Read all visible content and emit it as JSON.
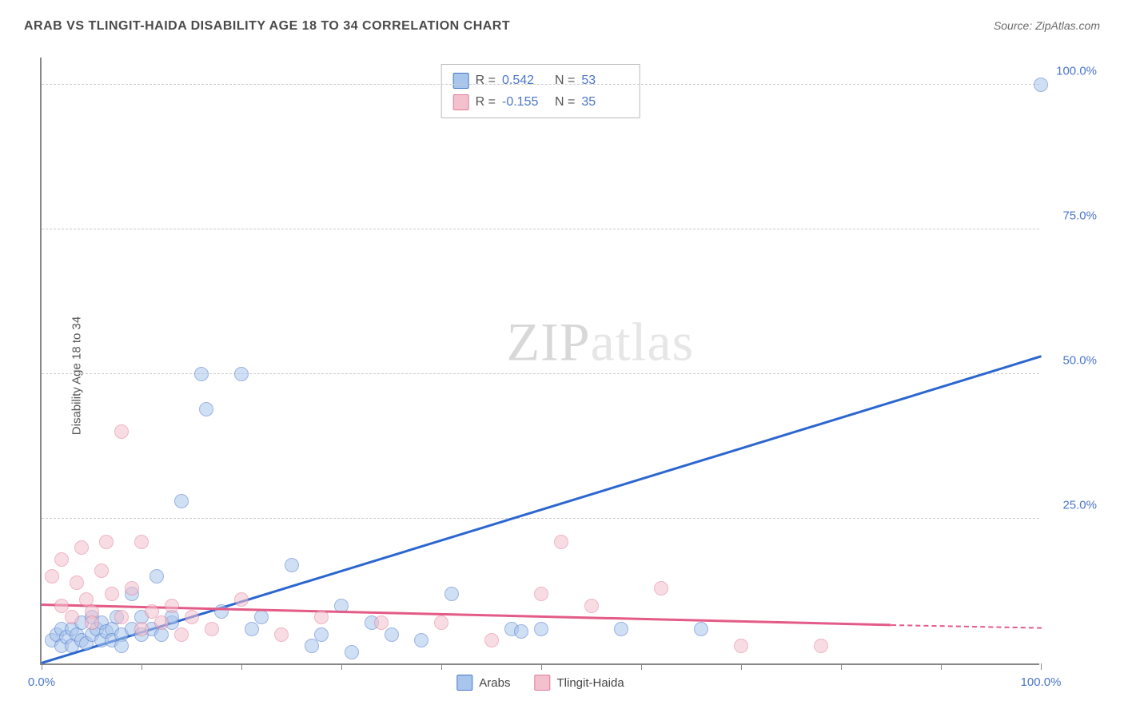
{
  "title": "ARAB VS TLINGIT-HAIDA DISABILITY AGE 18 TO 34 CORRELATION CHART",
  "source_label": "Source: ZipAtlas.com",
  "ylabel": "Disability Age 18 to 34",
  "watermark_a": "ZIP",
  "watermark_b": "atlas",
  "chart": {
    "type": "scatter",
    "xlim": [
      0,
      100
    ],
    "ylim": [
      0,
      105
    ],
    "ytick_values": [
      25,
      50,
      75,
      100
    ],
    "ytick_labels": [
      "25.0%",
      "50.0%",
      "75.0%",
      "100.0%"
    ],
    "xtick_values": [
      0,
      10,
      20,
      30,
      40,
      50,
      60,
      70,
      80,
      90,
      100
    ],
    "xtick_major_labels": {
      "0": "0.0%",
      "100": "100.0%"
    },
    "background_color": "#ffffff",
    "grid_color": "#cccccc",
    "axis_color": "#888888",
    "tick_label_color": "#4a76c9",
    "marker_radius": 9,
    "marker_opacity": 0.55,
    "series": [
      {
        "name": "Arabs",
        "fill": "#a8c5ec",
        "stroke": "#4a76c9",
        "trend": {
          "x1": 0,
          "y1": 0,
          "x2": 100,
          "y2": 53,
          "color": "#2b66d0"
        },
        "R_label": "R =",
        "R_value": "0.542",
        "N_label": "N =",
        "N_value": "53",
        "points": [
          [
            1,
            4
          ],
          [
            1.5,
            5
          ],
          [
            2,
            3
          ],
          [
            2,
            6
          ],
          [
            2.5,
            4.5
          ],
          [
            3,
            3
          ],
          [
            3,
            6
          ],
          [
            3.5,
            5
          ],
          [
            4,
            4
          ],
          [
            4,
            7
          ],
          [
            4.5,
            3.5
          ],
          [
            5,
            5
          ],
          [
            5,
            8
          ],
          [
            5.5,
            6
          ],
          [
            6,
            4
          ],
          [
            6,
            7
          ],
          [
            6.5,
            5.5
          ],
          [
            7,
            6
          ],
          [
            7,
            4
          ],
          [
            7.5,
            8
          ],
          [
            8,
            5
          ],
          [
            8,
            3
          ],
          [
            9,
            6
          ],
          [
            9,
            12
          ],
          [
            10,
            5
          ],
          [
            10,
            8
          ],
          [
            11,
            6
          ],
          [
            11.5,
            15
          ],
          [
            12,
            5
          ],
          [
            13,
            7
          ],
          [
            13,
            8
          ],
          [
            14,
            28
          ],
          [
            16.5,
            44
          ],
          [
            16,
            50
          ],
          [
            18,
            9
          ],
          [
            20,
            50
          ],
          [
            21,
            6
          ],
          [
            22,
            8
          ],
          [
            25,
            17
          ],
          [
            27,
            3
          ],
          [
            28,
            5
          ],
          [
            30,
            10
          ],
          [
            31,
            2
          ],
          [
            33,
            7
          ],
          [
            35,
            5
          ],
          [
            38,
            4
          ],
          [
            41,
            12
          ],
          [
            47,
            6
          ],
          [
            48,
            5.5
          ],
          [
            50,
            6
          ],
          [
            58,
            6
          ],
          [
            66,
            6
          ],
          [
            100,
            100
          ]
        ]
      },
      {
        "name": "Tlingit-Haida",
        "fill": "#f3c0cd",
        "stroke": "#e27a98",
        "trend": {
          "x1": 0,
          "y1": 10,
          "x2": 85,
          "y2": 6.5,
          "color": "#e35b86",
          "dash_x2": 100,
          "dash_y2": 6
        },
        "R_label": "R =",
        "R_value": "-0.155",
        "N_label": "N =",
        "N_value": "35",
        "points": [
          [
            1,
            15
          ],
          [
            2,
            10
          ],
          [
            2,
            18
          ],
          [
            3,
            8
          ],
          [
            3.5,
            14
          ],
          [
            4,
            20
          ],
          [
            4.5,
            11
          ],
          [
            5,
            9
          ],
          [
            5,
            7
          ],
          [
            6,
            16
          ],
          [
            6.5,
            21
          ],
          [
            7,
            12
          ],
          [
            8,
            8
          ],
          [
            8,
            40
          ],
          [
            9,
            13
          ],
          [
            10,
            6
          ],
          [
            10,
            21
          ],
          [
            11,
            9
          ],
          [
            12,
            7
          ],
          [
            13,
            10
          ],
          [
            14,
            5
          ],
          [
            15,
            8
          ],
          [
            17,
            6
          ],
          [
            20,
            11
          ],
          [
            24,
            5
          ],
          [
            28,
            8
          ],
          [
            34,
            7
          ],
          [
            40,
            7
          ],
          [
            45,
            4
          ],
          [
            50,
            12
          ],
          [
            52,
            21
          ],
          [
            55,
            10
          ],
          [
            62,
            13
          ],
          [
            70,
            3
          ],
          [
            78,
            3
          ]
        ]
      }
    ]
  },
  "bottom_legend": [
    {
      "label": "Arabs",
      "fill": "#a8c5ec",
      "stroke": "#4a76c9"
    },
    {
      "label": "Tlingit-Haida",
      "fill": "#f3c0cd",
      "stroke": "#e27a98"
    }
  ]
}
